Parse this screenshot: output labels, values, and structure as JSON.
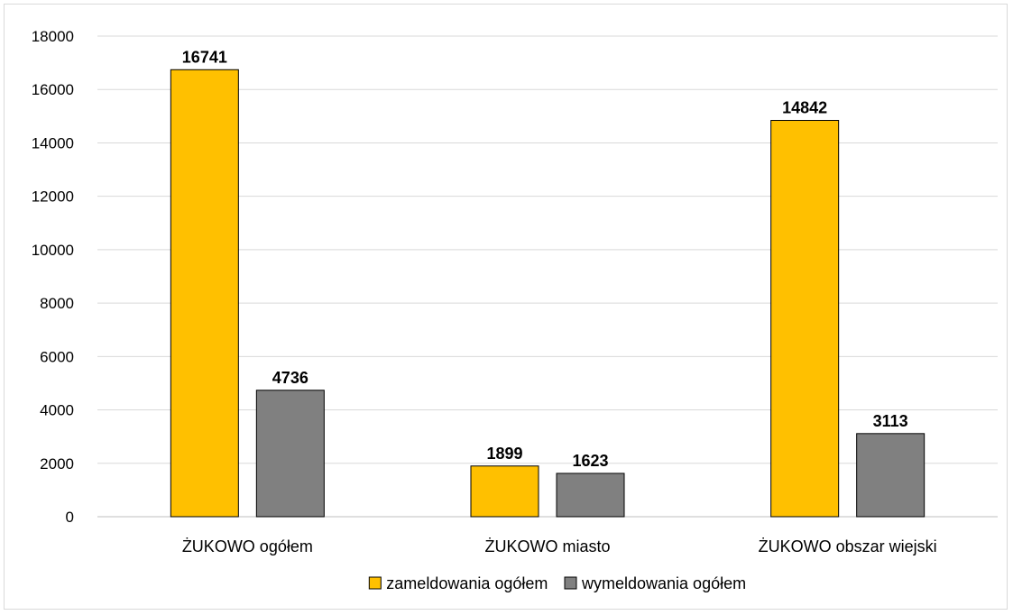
{
  "chart_data": {
    "type": "bar",
    "categories": [
      "ŻUKOWO ogółem",
      "ŻUKOWO miasto",
      "ŻUKOWO obszar wiejski"
    ],
    "series": [
      {
        "name": "zameldowania ogółem",
        "values": [
          16741,
          1899,
          14842
        ],
        "color": "#FFC000"
      },
      {
        "name": "wymeldowania ogółem",
        "values": [
          4736,
          1623,
          3113
        ],
        "color": "#808080"
      }
    ],
    "ylim": [
      0,
      18000
    ],
    "yticks": [
      0,
      2000,
      4000,
      6000,
      8000,
      10000,
      12000,
      14000,
      16000,
      18000
    ],
    "grid": true,
    "legend": "bottom",
    "data_labels": true
  }
}
